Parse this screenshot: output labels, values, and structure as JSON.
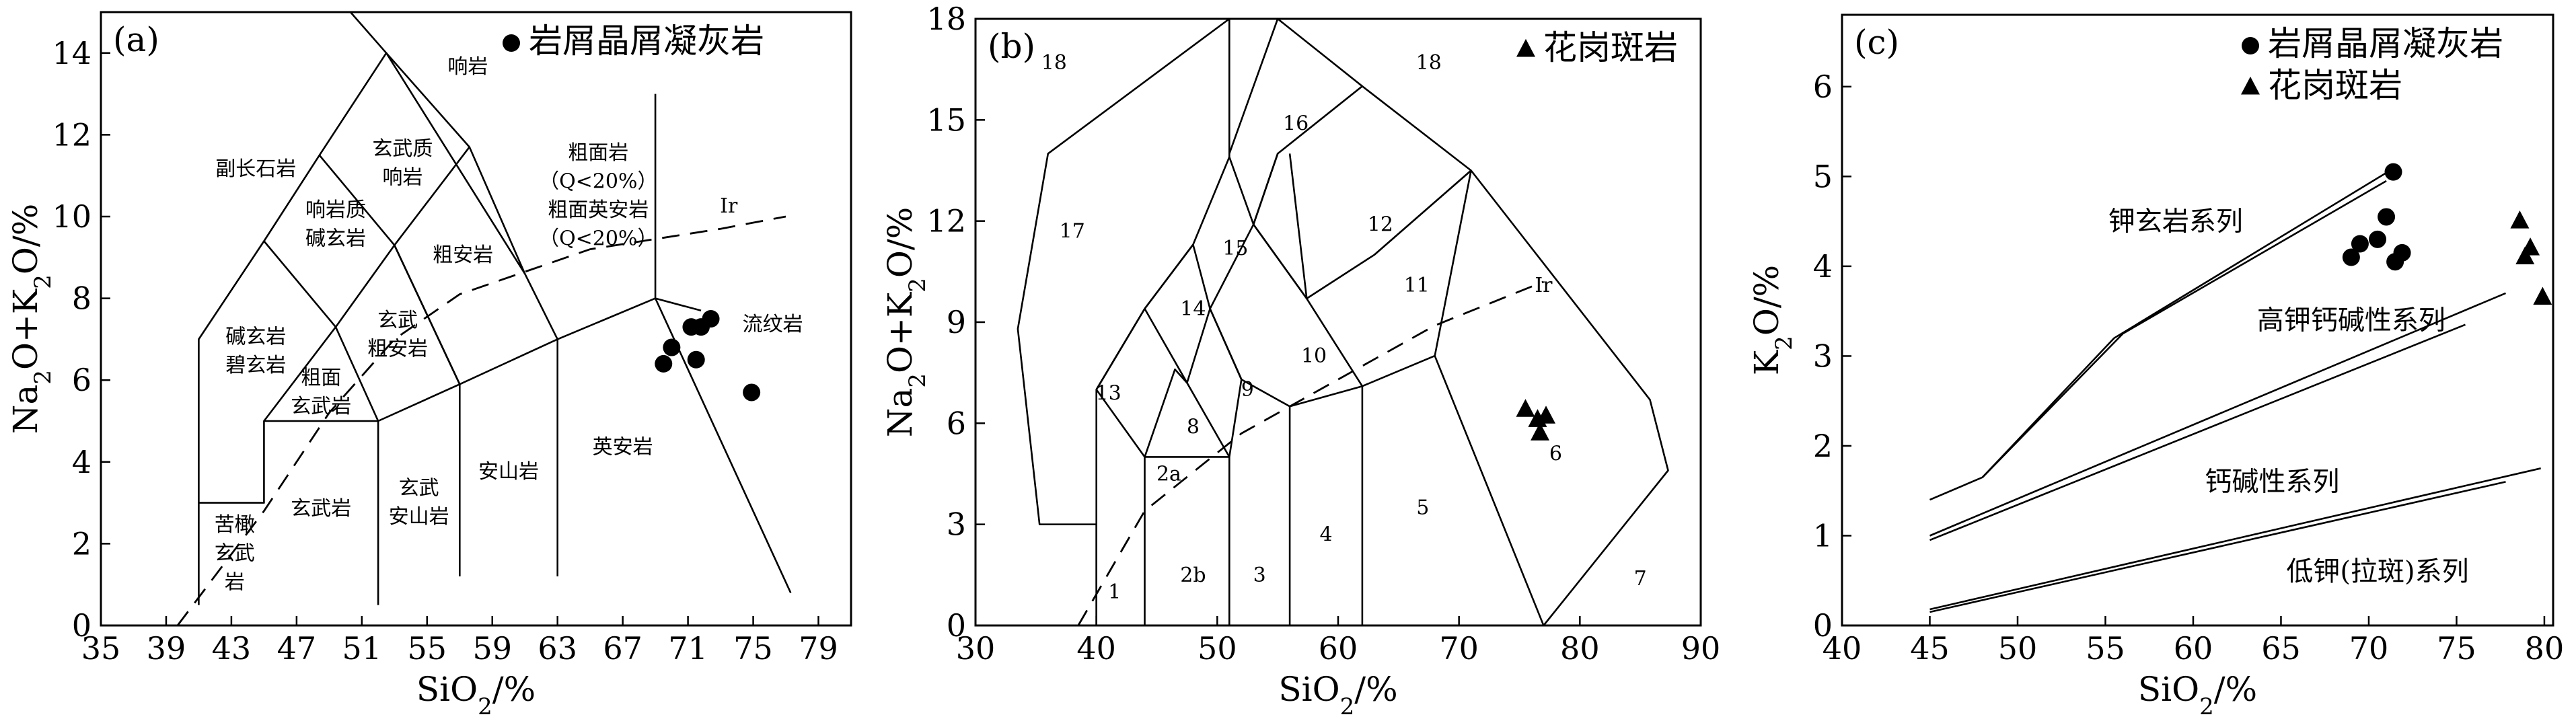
{
  "chart_data": [
    {
      "type": "scatter",
      "panel_label": "(a)",
      "xlabel": "SiO₂/%",
      "ylabel": "Na₂O+K₂O/%",
      "xlim": [
        35,
        81
      ],
      "ylim": [
        0,
        15
      ],
      "xticks": [
        35,
        39,
        43,
        47,
        51,
        55,
        59,
        63,
        67,
        71,
        75,
        79
      ],
      "yticks": [
        0,
        2,
        4,
        6,
        8,
        10,
        12,
        14
      ],
      "legend": [
        {
          "marker": "circle",
          "label": "岩屑晶屑凝灰岩"
        }
      ],
      "series": [
        {
          "name": "岩屑晶屑凝灰岩",
          "marker": "circle",
          "points": [
            [
              69.5,
              6.4
            ],
            [
              70.0,
              6.8
            ],
            [
              71.2,
              7.3
            ],
            [
              71.8,
              7.3
            ],
            [
              72.4,
              7.5
            ],
            [
              71.5,
              6.5
            ],
            [
              74.9,
              5.7
            ]
          ]
        }
      ],
      "field_lines": [
        [
          [
            41,
            0.5
          ],
          [
            41,
            3
          ],
          [
            45,
            3
          ],
          [
            45,
            5
          ],
          [
            52,
            5
          ],
          [
            52,
            0.5
          ]
        ],
        [
          [
            41,
            3
          ],
          [
            41,
            7
          ],
          [
            45,
            9.4
          ],
          [
            48.4,
            11.5
          ],
          [
            52.5,
            14
          ],
          [
            57.6,
            11.7
          ],
          [
            61,
            8.6
          ],
          [
            63,
            7
          ],
          [
            69,
            8
          ],
          [
            71.8,
            7.7
          ]
        ],
        [
          [
            45,
            5
          ],
          [
            49.4,
            7.3
          ],
          [
            53,
            9.3
          ],
          [
            57.6,
            11.7
          ]
        ],
        [
          [
            52,
            5
          ],
          [
            57,
            5.9
          ],
          [
            63,
            7
          ]
        ],
        [
          [
            45,
            9.4
          ],
          [
            49.4,
            7.3
          ],
          [
            52,
            5
          ]
        ],
        [
          [
            48.4,
            11.5
          ],
          [
            53,
            9.3
          ],
          [
            57,
            5.9
          ]
        ],
        [
          [
            52.5,
            14
          ],
          [
            61,
            8.6
          ]
        ],
        [
          [
            57,
            5.9
          ],
          [
            57,
            1.2
          ]
        ],
        [
          [
            63,
            7
          ],
          [
            63,
            1.2
          ]
        ],
        [
          [
            53,
            9.3
          ],
          [
            57,
            5.9
          ]
        ],
        [
          [
            50.3,
            15
          ],
          [
            52.5,
            14
          ]
        ],
        [
          [
            69,
            13
          ],
          [
            69,
            8
          ],
          [
            77.3,
            0.8
          ]
        ]
      ],
      "ir_line": [
        [
          39.7,
          0
        ],
        [
          45,
          2.8
        ],
        [
          49,
          5.2
        ],
        [
          53,
          7
        ],
        [
          57,
          8.1
        ],
        [
          65,
          9.2
        ],
        [
          73,
          9.7
        ],
        [
          77,
          10
        ]
      ],
      "field_labels": [
        {
          "text": "响岩",
          "x": 57.5,
          "y": 13.5
        },
        {
          "text": "玄武质",
          "x": 53.5,
          "y": 11.5
        },
        {
          "text": "响岩",
          "x": 53.5,
          "y": 10.8
        },
        {
          "text": "副长石岩",
          "x": 44.5,
          "y": 11
        },
        {
          "text": "粗面岩",
          "x": 65.5,
          "y": 11.4
        },
        {
          "text": "（Q<20%）",
          "x": 65.5,
          "y": 10.7
        },
        {
          "text": "粗面英安岩",
          "x": 65.5,
          "y": 10
        },
        {
          "text": "（Q<20%）",
          "x": 65.5,
          "y": 9.3
        },
        {
          "text": "响岩质",
          "x": 49.4,
          "y": 10
        },
        {
          "text": "碱玄岩",
          "x": 49.4,
          "y": 9.3
        },
        {
          "text": "粗安岩",
          "x": 57.2,
          "y": 8.9
        },
        {
          "text": "Ir",
          "x": 73.5,
          "y": 10.1
        },
        {
          "text": "碱玄岩",
          "x": 44.5,
          "y": 6.9
        },
        {
          "text": "碧玄岩",
          "x": 44.5,
          "y": 6.2
        },
        {
          "text": "玄武",
          "x": 53.2,
          "y": 7.3
        },
        {
          "text": "粗安岩",
          "x": 53.2,
          "y": 6.6
        },
        {
          "text": "粗面",
          "x": 48.5,
          "y": 5.9
        },
        {
          "text": "玄武岩",
          "x": 48.5,
          "y": 5.2
        },
        {
          "text": "流纹岩",
          "x": 76.2,
          "y": 7.2
        },
        {
          "text": "英安岩",
          "x": 67,
          "y": 4.2
        },
        {
          "text": "安山岩",
          "x": 60,
          "y": 3.6
        },
        {
          "text": "玄武",
          "x": 54.5,
          "y": 3.2
        },
        {
          "text": "安山岩",
          "x": 54.5,
          "y": 2.5
        },
        {
          "text": "玄武岩",
          "x": 48.5,
          "y": 2.7
        },
        {
          "text": "苦橄",
          "x": 43.2,
          "y": 2.3
        },
        {
          "text": "玄武",
          "x": 43.2,
          "y": 1.6
        },
        {
          "text": "岩",
          "x": 43.2,
          "y": 0.9
        }
      ]
    },
    {
      "type": "scatter",
      "panel_label": "(b)",
      "xlabel": "SiO₂/%",
      "ylabel": "Na₂O+K₂O/%",
      "xlim": [
        30,
        90
      ],
      "ylim": [
        0,
        18
      ],
      "xticks": [
        30,
        40,
        50,
        60,
        70,
        80,
        90
      ],
      "yticks": [
        0,
        3,
        6,
        9,
        12,
        15,
        18
      ],
      "legend": [
        {
          "marker": "triangle",
          "label": "花岗斑岩"
        }
      ],
      "series": [
        {
          "name": "花岗斑岩",
          "marker": "triangle",
          "points": [
            [
              75.5,
              6.4
            ],
            [
              76.5,
              6.1
            ],
            [
              77.2,
              6.2
            ],
            [
              76.7,
              5.7
            ]
          ]
        }
      ],
      "field_lines": [
        [
          [
            40,
            0
          ],
          [
            40,
            3
          ],
          [
            35.3,
            3
          ],
          [
            33.5,
            8.8
          ],
          [
            36,
            14
          ],
          [
            51,
            18
          ],
          [
            55,
            18
          ],
          [
            62,
            16
          ],
          [
            71,
            13.5
          ],
          [
            85.8,
            6.7
          ],
          [
            87.3,
            4.6
          ],
          [
            77,
            0
          ]
        ],
        [
          [
            40,
            0
          ],
          [
            40,
            7
          ],
          [
            44,
            9.4
          ],
          [
            48,
            11.3
          ],
          [
            51,
            13.9
          ],
          [
            51,
            18
          ]
        ],
        [
          [
            44,
            0
          ],
          [
            44,
            5
          ],
          [
            51,
            5
          ],
          [
            51,
            0
          ]
        ],
        [
          [
            44,
            5
          ],
          [
            40,
            7
          ]
        ],
        [
          [
            44,
            5
          ],
          [
            46.5,
            7.6
          ],
          [
            47.5,
            7.2
          ],
          [
            49.4,
            9.4
          ],
          [
            53,
            11.9
          ],
          [
            55,
            14
          ],
          [
            62,
            16
          ]
        ],
        [
          [
            40,
            7
          ],
          [
            44,
            9.4
          ],
          [
            48,
            11.3
          ]
        ],
        [
          [
            44,
            9.4
          ],
          [
            47.5,
            7.2
          ],
          [
            51,
            5
          ]
        ],
        [
          [
            48,
            11.3
          ],
          [
            49.4,
            9.4
          ],
          [
            52,
            7.3
          ],
          [
            56,
            6.5
          ],
          [
            62,
            7.1
          ],
          [
            68,
            8
          ],
          [
            77,
            0
          ]
        ],
        [
          [
            51,
            13.9
          ],
          [
            53,
            11.9
          ],
          [
            57.4,
            9.7
          ],
          [
            62,
            7.1
          ]
        ],
        [
          [
            51,
            5
          ],
          [
            52,
            7.3
          ]
        ],
        [
          [
            49.4,
            9.4
          ],
          [
            52,
            7.3
          ]
        ],
        [
          [
            53,
            11.9
          ],
          [
            57.4,
            9.7
          ],
          [
            63,
            11
          ],
          [
            71,
            13.5
          ]
        ],
        [
          [
            56,
            6.5
          ],
          [
            56,
            0
          ]
        ],
        [
          [
            62,
            7.1
          ],
          [
            62,
            0
          ]
        ],
        [
          [
            57.4,
            9.7
          ],
          [
            56,
            14
          ]
        ],
        [
          [
            55,
            14
          ],
          [
            53,
            11.9
          ]
        ],
        [
          [
            63,
            11
          ],
          [
            71,
            13.5
          ]
        ],
        [
          [
            68,
            8
          ],
          [
            71,
            13.5
          ]
        ],
        [
          [
            51,
            14
          ],
          [
            55,
            18
          ]
        ]
      ],
      "ir_line": [
        [
          38.5,
          0
        ],
        [
          44,
          3.4
        ],
        [
          52,
          5.7
        ],
        [
          60,
          7.3
        ],
        [
          68,
          8.9
        ],
        [
          77,
          10.2
        ]
      ],
      "field_labels": [
        {
          "text": "18",
          "x": 36.5,
          "y": 16.5
        },
        {
          "text": "18",
          "x": 67.5,
          "y": 16.5
        },
        {
          "text": "17",
          "x": 38,
          "y": 11.5
        },
        {
          "text": "16",
          "x": 56.5,
          "y": 14.7
        },
        {
          "text": "15",
          "x": 51.5,
          "y": 11
        },
        {
          "text": "14",
          "x": 48,
          "y": 9.2
        },
        {
          "text": "13",
          "x": 41,
          "y": 6.7
        },
        {
          "text": "12",
          "x": 63.5,
          "y": 11.7
        },
        {
          "text": "11",
          "x": 66.5,
          "y": 9.9
        },
        {
          "text": "10",
          "x": 58,
          "y": 7.8
        },
        {
          "text": "9",
          "x": 52.5,
          "y": 6.8
        },
        {
          "text": "8",
          "x": 48,
          "y": 5.7
        },
        {
          "text": "Ir",
          "x": 77,
          "y": 9.9
        },
        {
          "text": "2a",
          "x": 46,
          "y": 4.3
        },
        {
          "text": "2b",
          "x": 48,
          "y": 1.3
        },
        {
          "text": "1",
          "x": 41.5,
          "y": 0.8
        },
        {
          "text": "3",
          "x": 53.5,
          "y": 1.3
        },
        {
          "text": "4",
          "x": 59,
          "y": 2.5
        },
        {
          "text": "5",
          "x": 67,
          "y": 3.3
        },
        {
          "text": "6",
          "x": 78,
          "y": 4.9
        },
        {
          "text": "7",
          "x": 85,
          "y": 1.2
        }
      ]
    },
    {
      "type": "scatter",
      "panel_label": "(c)",
      "xlabel": "SiO₂/%",
      "ylabel": "K₂O/%",
      "xlim": [
        40,
        80.5
      ],
      "ylim": [
        0,
        6.8
      ],
      "xticks": [
        40,
        45,
        50,
        55,
        60,
        65,
        70,
        75,
        80
      ],
      "yticks": [
        0,
        1,
        2,
        3,
        4,
        5,
        6
      ],
      "legend": [
        {
          "marker": "circle",
          "label": "岩屑晶屑凝灰岩"
        },
        {
          "marker": "triangle",
          "label": "花岗斑岩"
        }
      ],
      "series": [
        {
          "name": "岩屑晶屑凝灰岩",
          "marker": "circle",
          "points": [
            [
              71.4,
              5.05
            ],
            [
              69.5,
              4.25
            ],
            [
              70.5,
              4.3
            ],
            [
              71.0,
              4.55
            ],
            [
              69.0,
              4.1
            ],
            [
              71.5,
              4.05
            ],
            [
              71.9,
              4.15
            ]
          ]
        },
        {
          "name": "花岗斑岩",
          "marker": "triangle",
          "points": [
            [
              78.6,
              4.5
            ],
            [
              79.2,
              4.2
            ],
            [
              78.9,
              4.1
            ],
            [
              79.9,
              3.65
            ]
          ]
        }
      ],
      "field_lines": [
        [
          [
            45,
            1.4
          ],
          [
            48,
            1.65
          ],
          [
            55.5,
            3.2
          ],
          [
            71.5,
            5.1
          ]
        ],
        [
          [
            48,
            1.65
          ],
          [
            56,
            3.25
          ],
          [
            71,
            4.95
          ]
        ],
        [
          [
            45,
            1.0
          ],
          [
            77.8,
            3.7
          ]
        ],
        [
          [
            45,
            0.95
          ],
          [
            75.5,
            3.35
          ]
        ],
        [
          [
            45,
            0.18
          ],
          [
            79.8,
            1.75
          ]
        ],
        [
          [
            45,
            0.15
          ],
          [
            77.8,
            1.6
          ]
        ]
      ],
      "field_labels": [
        {
          "text": "钾玄岩系列",
          "x": 59,
          "y": 4.4
        },
        {
          "text": "高钾钙碱性系列",
          "x": 69,
          "y": 3.3
        },
        {
          "text": "钙碱性系列",
          "x": 64.5,
          "y": 1.5
        },
        {
          "text": "低钾(拉斑)系列",
          "x": 70.5,
          "y": 0.5
        }
      ]
    }
  ]
}
